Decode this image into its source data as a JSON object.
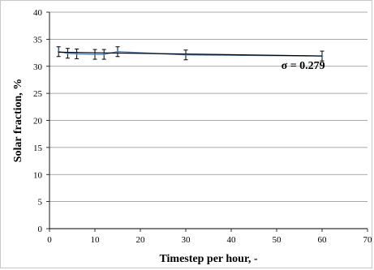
{
  "chart_data": {
    "type": "line",
    "title": "",
    "xlabel": "Timestep per hour, -",
    "ylabel": "Solar fraction, %",
    "xlim": [
      0,
      70
    ],
    "ylim": [
      0,
      40
    ],
    "x_ticks": [
      0,
      10,
      20,
      30,
      40,
      50,
      60,
      70
    ],
    "y_ticks": [
      0,
      5,
      10,
      15,
      20,
      25,
      30,
      35,
      40
    ],
    "grid": "horizontal",
    "legend": "none",
    "series": [
      {
        "name": "",
        "color": "#4f81bd",
        "x": [
          2,
          4,
          6,
          10,
          12,
          15,
          30,
          60
        ],
        "y": [
          32.7,
          32.4,
          32.3,
          32.2,
          32.2,
          32.7,
          32.1,
          31.9
        ],
        "error": [
          0.9,
          0.9,
          0.9,
          0.9,
          0.9,
          0.9,
          0.9,
          0.9
        ]
      }
    ],
    "trendline": {
      "color": "#000000",
      "x": [
        2,
        60
      ],
      "y": [
        32.6,
        31.9
      ]
    },
    "annotation": {
      "text": "σ = 0.279",
      "x": 51,
      "y": 29.5
    }
  }
}
